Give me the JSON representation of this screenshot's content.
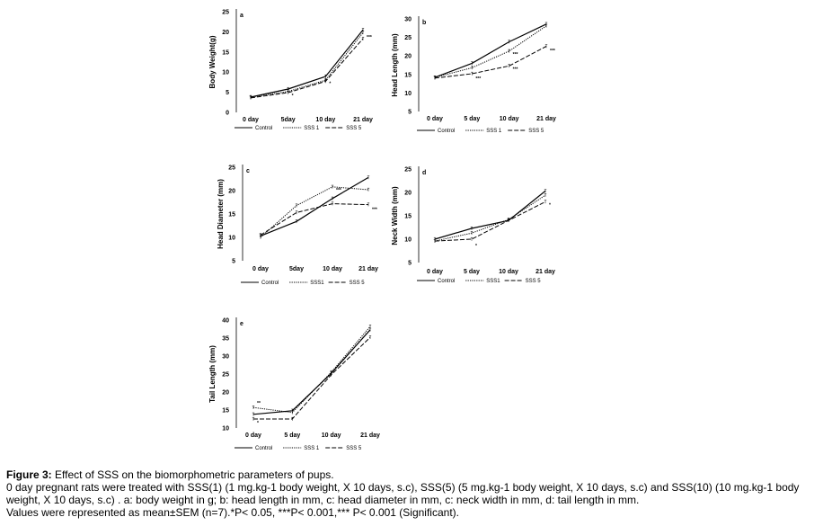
{
  "figure": {
    "caption_label": "Figure 3:",
    "caption_title": " Effect of SSS on the biomorphometric parameters of pups.",
    "caption_line2": "0 day pregnant rats were treated with SSS(1) (1 mg.kg-1 body weight, X 10 days, s.c), SSS(5) (5 mg.kg-1 body weight, X 10 days, s.c) and SSS(10) (10 mg.kg-1 body weight, X 10 days, s.c) . a: body weight in g; b: head length in mm, c: head diameter in mm, c: neck width in mm, d: tail length in mm.",
    "caption_line3": "Values were represented as mean±SEM (n=7).*P< 0.05, ***P< 0.001,*** P< 0.001 (Significant)."
  },
  "colors": {
    "line": "#000000",
    "background": "#ffffff"
  },
  "chart_data": [
    {
      "type": "line",
      "panel": "a",
      "ylabel": "Body Weight(g)",
      "categories": [
        "0 day",
        "5day",
        "10 day",
        "21 day"
      ],
      "ylim": [
        0,
        25
      ],
      "yticks": [
        0,
        5,
        10,
        15,
        20,
        25
      ],
      "series": [
        {
          "name": "Control",
          "style": "solid",
          "values": [
            3.8,
            5.8,
            8.9,
            20.5
          ]
        },
        {
          "name": "SSS 1",
          "style": "dotted",
          "values": [
            3.8,
            5.2,
            8.0,
            19.8
          ]
        },
        {
          "name": "SSS 5",
          "style": "dashed",
          "values": [
            3.6,
            4.9,
            7.7,
            18.3
          ]
        }
      ],
      "annotations": [
        {
          "text": "*",
          "category": "5day",
          "y": 3.8
        },
        {
          "text": "*",
          "category": "10 day",
          "y": 6.8
        },
        {
          "text": "***",
          "category": "21 day",
          "y": 18.3
        }
      ]
    },
    {
      "type": "line",
      "panel": "b",
      "ylabel": "Head Length (mm)",
      "categories": [
        "0 day",
        "5 day",
        "10 day",
        "21 day"
      ],
      "ylim": [
        5,
        30
      ],
      "yticks": [
        5,
        10,
        15,
        20,
        25,
        30
      ],
      "series": [
        {
          "name": "Control",
          "style": "solid",
          "values": [
            14.2,
            18.0,
            23.8,
            28.6
          ]
        },
        {
          "name": "SSS 1",
          "style": "dotted",
          "values": [
            14.2,
            16.8,
            21.3,
            28.1
          ]
        },
        {
          "name": "SSS 5",
          "style": "dashed",
          "values": [
            14.0,
            15.2,
            17.3,
            22.6
          ]
        }
      ],
      "annotations": [
        {
          "text": "***",
          "category": "5 day",
          "y": 13.5
        },
        {
          "text": "***",
          "category": "10 day",
          "y": 20.0
        },
        {
          "text": "***",
          "category": "10 day",
          "y": 16.0
        },
        {
          "text": "***",
          "category": "21 day",
          "y": 21.0
        }
      ]
    },
    {
      "type": "line",
      "panel": "c",
      "ylabel": "Head Diameter (mm)",
      "categories": [
        "0 day",
        "5day",
        "10 day",
        "21 day"
      ],
      "ylim": [
        5,
        25
      ],
      "yticks": [
        5,
        10,
        15,
        20,
        25
      ],
      "series": [
        {
          "name": "Control",
          "style": "solid",
          "values": [
            10.3,
            13.4,
            18.3,
            22.8
          ]
        },
        {
          "name": "SSS1",
          "style": "dotted",
          "values": [
            10.0,
            16.8,
            20.8,
            20.2
          ]
        },
        {
          "name": "SSS 5",
          "style": "dashed",
          "values": [
            10.5,
            15.3,
            17.2,
            17.0
          ]
        }
      ],
      "annotations": [
        {
          "text": "***",
          "category": "10 day",
          "y": 19.8
        },
        {
          "text": "***",
          "category": "21 day",
          "y": 15.7
        }
      ]
    },
    {
      "type": "line",
      "panel": "d",
      "ylabel": "Neck Width (mm)",
      "categories": [
        "0 day",
        "5 day",
        "10 day",
        "21 day"
      ],
      "ylim": [
        5,
        25
      ],
      "yticks": [
        5,
        10,
        15,
        20,
        25
      ],
      "series": [
        {
          "name": "Control",
          "style": "solid",
          "values": [
            10.0,
            12.3,
            14.0,
            20.3
          ]
        },
        {
          "name": "SSS1",
          "style": "dotted",
          "values": [
            9.6,
            11.3,
            14.2,
            19.4
          ]
        },
        {
          "name": "SSS 5",
          "style": "dashed",
          "values": [
            9.6,
            10.0,
            14.0,
            18.0
          ]
        }
      ],
      "annotations": [
        {
          "text": "*",
          "category": "5 day",
          "y": 8.3
        },
        {
          "text": "*",
          "category": "21 day",
          "y": 17.0
        }
      ]
    },
    {
      "type": "line",
      "panel": "e",
      "ylabel": "Tail Length (mm)",
      "categories": [
        "0 day",
        "5 day",
        "10 day",
        "21 day"
      ],
      "ylim": [
        10,
        40
      ],
      "yticks": [
        10,
        15,
        20,
        25,
        30,
        35,
        40
      ],
      "series": [
        {
          "name": "Control",
          "style": "solid",
          "values": [
            13.8,
            14.8,
            25.2,
            37.3
          ]
        },
        {
          "name": "SSS 1",
          "style": "dotted",
          "values": [
            15.7,
            14.3,
            25.5,
            38.2
          ]
        },
        {
          "name": "SSS 5",
          "style": "dashed",
          "values": [
            12.5,
            12.5,
            24.8,
            35.2
          ]
        }
      ],
      "annotations": [
        {
          "text": "**",
          "category": "0 day",
          "y": 16.5
        },
        {
          "text": "*",
          "category": "0 day",
          "y": 11.0
        }
      ]
    }
  ]
}
